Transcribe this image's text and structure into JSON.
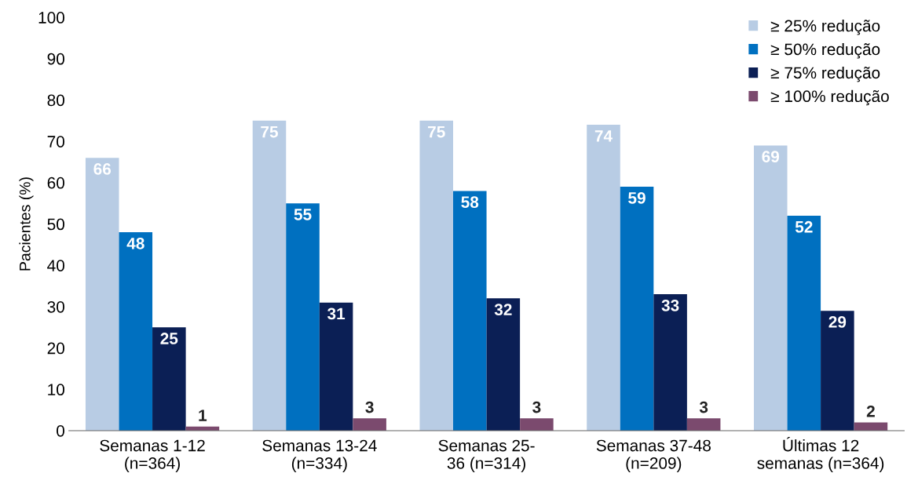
{
  "chart_data": {
    "type": "bar",
    "ylabel": "Pacientes (%)",
    "categories": [
      "Semanas 1-12\n(n=364)",
      "Semanas 13-24\n(n=334)",
      "Semanas 25-\n36 (n=314)",
      "Semanas 37-48\n(n=209)",
      "Últimas 12\nsemanas (n=364)"
    ],
    "series": [
      {
        "name": "≥ 25% redução",
        "color": "#b8cce4",
        "values": [
          66,
          75,
          75,
          74,
          69
        ]
      },
      {
        "name": "≥ 50% redução",
        "color": "#0070c0",
        "values": [
          48,
          55,
          58,
          59,
          52
        ]
      },
      {
        "name": "≥ 75% redução",
        "color": "#0b1f55",
        "values": [
          25,
          31,
          32,
          33,
          29
        ]
      },
      {
        "name": "≥ 100% redução",
        "color": "#7b4a6e",
        "values": [
          1,
          3,
          3,
          3,
          2
        ]
      }
    ],
    "ylim": [
      0,
      100
    ],
    "yticks": [
      0,
      10,
      20,
      30,
      40,
      50,
      60,
      70,
      80,
      90,
      100
    ],
    "data_labels": true,
    "grid": false,
    "legend": "top right"
  }
}
